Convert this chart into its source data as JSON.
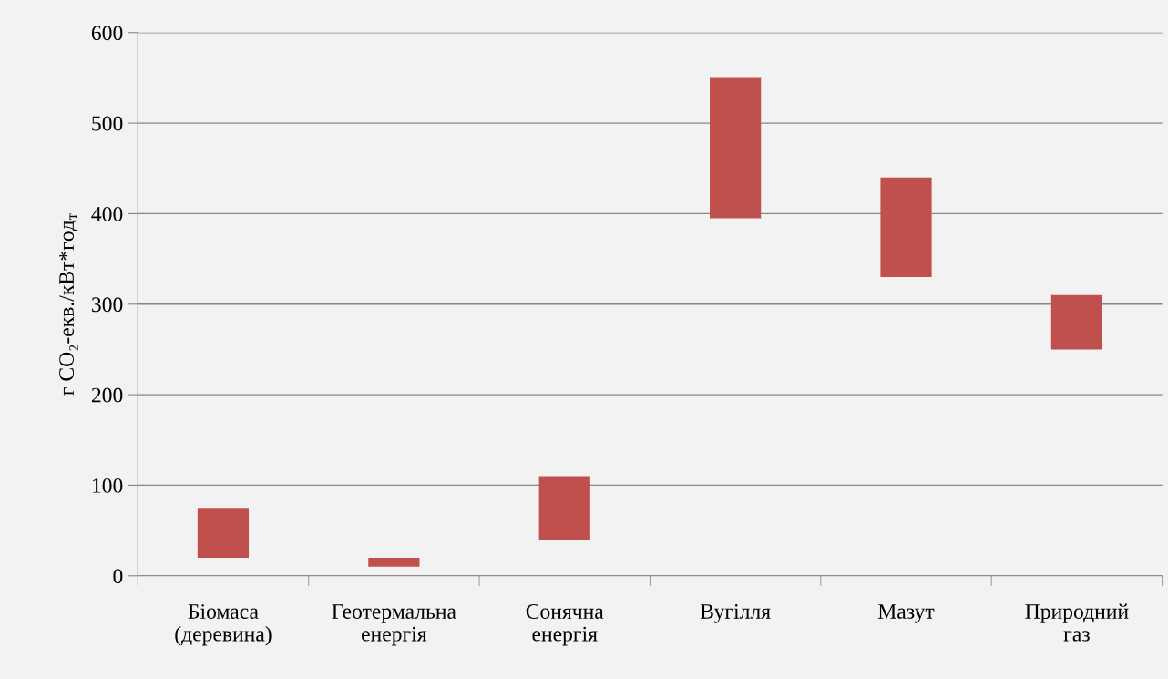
{
  "chart_data": {
    "type": "bar",
    "ylabel": "г CO₂-екв./кВт*год$_{т}$",
    "categories": [
      "Біомаса\n(деревина)",
      "Геотермальна\nенергія",
      "Сонячна\nенергія",
      "Вугілля",
      "Мазут",
      "Природний\nгаз"
    ],
    "base": [
      20,
      10,
      40,
      395,
      330,
      250
    ],
    "values": [
      55,
      10,
      70,
      155,
      110,
      60
    ],
    "color": "#c0504d",
    "ylim": [
      0,
      600
    ],
    "yticks": [
      0,
      100,
      200,
      300,
      400,
      500,
      600
    ],
    "grid": "y"
  }
}
